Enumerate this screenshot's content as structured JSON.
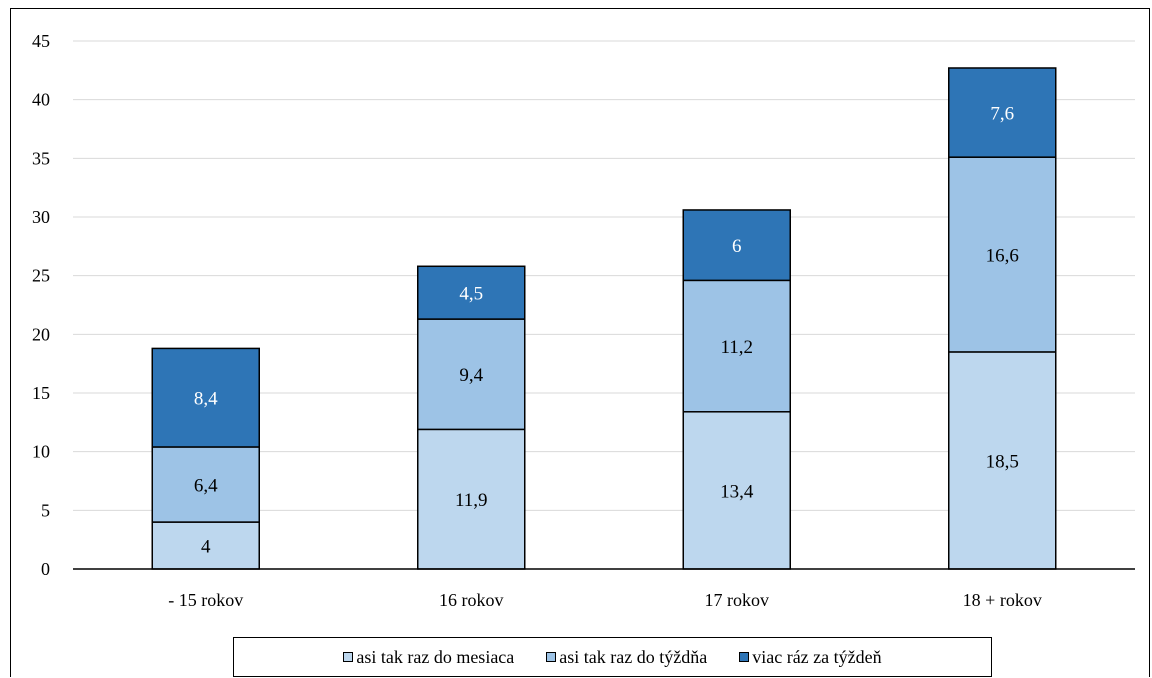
{
  "header": {
    "clipped_title": ""
  },
  "chart_data": {
    "type": "bar",
    "stacked": true,
    "title": "",
    "xlabel": "",
    "ylabel": "",
    "categories": [
      "- 15 rokov",
      "16 rokov",
      "17 rokov",
      "18 + rokov"
    ],
    "ylim": [
      0,
      45
    ],
    "yticks": [
      0,
      5,
      10,
      15,
      20,
      25,
      30,
      35,
      40,
      45
    ],
    "ytick_labels": [
      "0",
      "5",
      "10",
      "15",
      "20",
      "25",
      "30",
      "35",
      "40",
      "45"
    ],
    "grid": true,
    "legend_position": "bottom",
    "series": [
      {
        "name": "asi tak raz do mesiaca",
        "values": [
          4,
          11.9,
          13.4,
          18.5
        ],
        "labels": [
          "4",
          "11,9",
          "13,4",
          "18,5"
        ],
        "color": "#bdd7ee",
        "label_color": "#000000"
      },
      {
        "name": "asi tak raz do týždňa",
        "values": [
          6.4,
          9.4,
          11.2,
          16.6
        ],
        "labels": [
          "6,4",
          "9,4",
          "11,2",
          "16,6"
        ],
        "color": "#9dc3e6",
        "label_color": "#000000"
      },
      {
        "name": "viac ráz za týždeň",
        "values": [
          8.4,
          4.5,
          6,
          7.6
        ],
        "labels": [
          "8,4",
          "4,5",
          "6",
          "7,6"
        ],
        "color": "#2e75b6",
        "label_color": "#ffffff"
      }
    ]
  }
}
